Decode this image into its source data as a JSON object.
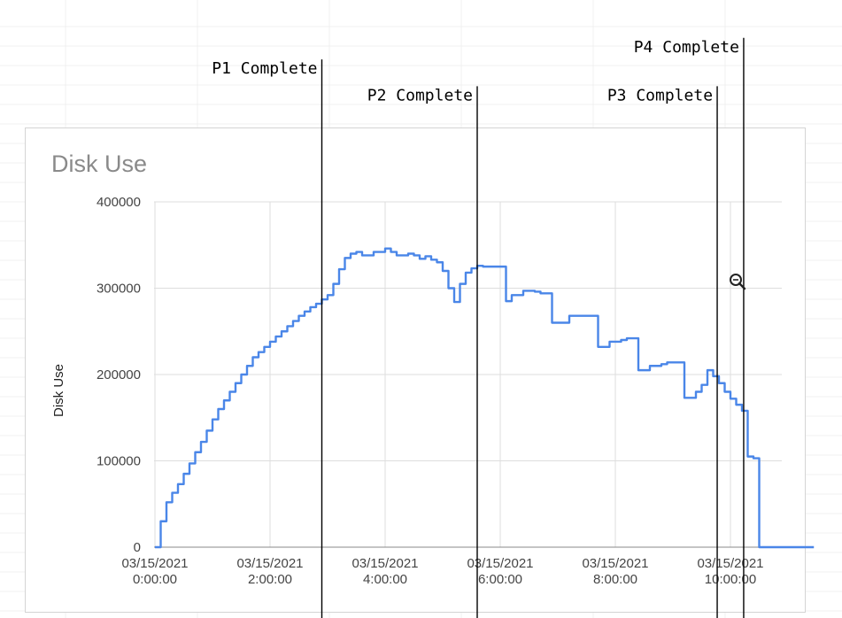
{
  "chart_data": {
    "type": "line",
    "title": "Disk Use",
    "xlabel": "",
    "ylabel": "Disk Use",
    "ylim": [
      0,
      400000
    ],
    "xlim_hours": [
      0,
      11.5
    ],
    "y_ticks": [
      {
        "value": 0,
        "label": "0"
      },
      {
        "value": 100000,
        "label": "100000"
      },
      {
        "value": 200000,
        "label": "200000"
      },
      {
        "value": 300000,
        "label": "300000"
      },
      {
        "value": 400000,
        "label": "400000"
      }
    ],
    "x_ticks": [
      {
        "hours": 0,
        "date": "03/15/2021",
        "time": "0:00:00"
      },
      {
        "hours": 2,
        "date": "03/15/2021",
        "time": "2:00:00"
      },
      {
        "hours": 4,
        "date": "03/15/2021",
        "time": "4:00:00"
      },
      {
        "hours": 6,
        "date": "03/15/2021",
        "time": "6:00:00"
      },
      {
        "hours": 8,
        "date": "03/15/2021",
        "time": "8:00:00"
      },
      {
        "hours": 10,
        "date": "03/15/2021",
        "time": "10:00:00"
      }
    ],
    "grid": true,
    "legend": "none",
    "line_color": "#4a86e8",
    "series": [
      {
        "x": [
          0,
          0.1,
          0.2,
          0.3,
          0.4,
          0.5,
          0.6,
          0.7,
          0.8,
          0.9,
          1.0,
          1.1,
          1.2,
          1.3,
          1.4,
          1.5,
          1.6,
          1.7,
          1.8,
          1.9,
          2.0,
          2.1,
          2.2,
          2.3,
          2.4,
          2.5,
          2.6,
          2.7,
          2.8,
          2.9,
          3.0,
          3.1,
          3.2,
          3.3,
          3.4,
          3.5,
          3.6,
          3.8,
          4.0,
          4.1,
          4.2,
          4.4,
          4.5,
          4.6,
          4.7,
          4.8,
          4.9,
          5.0,
          5.1,
          5.2,
          5.3,
          5.4,
          5.5,
          5.6,
          5.7,
          5.8,
          5.9,
          6.0,
          6.1,
          6.2,
          6.4,
          6.6,
          6.7,
          6.9,
          7.2,
          7.4,
          7.5,
          7.7,
          7.9,
          8.1,
          8.2,
          8.3,
          8.4,
          8.6,
          8.8,
          8.9,
          9.0,
          9.2,
          9.4,
          9.5,
          9.6,
          9.7,
          9.8,
          9.9,
          10.0,
          10.1,
          10.2,
          10.3,
          10.4,
          10.5,
          10.6,
          10.7,
          10.8,
          10.9,
          11.0,
          11.2,
          11.45
        ],
        "y": [
          0,
          30000,
          52000,
          63000,
          73000,
          85000,
          97000,
          110000,
          122000,
          135000,
          148000,
          160000,
          170000,
          180000,
          190000,
          200000,
          210000,
          220000,
          226000,
          232000,
          238000,
          244000,
          250000,
          256000,
          262000,
          268000,
          273000,
          278000,
          282000,
          287000,
          292000,
          305000,
          322000,
          335000,
          340000,
          342000,
          338000,
          342000,
          346000,
          342000,
          338000,
          340000,
          338000,
          334000,
          337000,
          333000,
          330000,
          320000,
          300000,
          284000,
          305000,
          318000,
          323000,
          326000,
          325000,
          325000,
          325000,
          325000,
          285000,
          292000,
          297000,
          296000,
          294000,
          260000,
          268000,
          268000,
          268000,
          232000,
          238000,
          240000,
          242000,
          242000,
          205000,
          210000,
          212000,
          214000,
          214000,
          173000,
          180000,
          188000,
          205000,
          198000,
          190000,
          180000,
          172000,
          165000,
          158000,
          105000,
          103000,
          0,
          0,
          0,
          0,
          0,
          0,
          0,
          0
        ]
      }
    ],
    "annotations": [
      {
        "label": "P1 Complete",
        "hours": 2.9,
        "label_side": "left",
        "line_top_y_value": 565000
      },
      {
        "label": "P2 Complete",
        "hours": 5.6,
        "label_side": "left",
        "line_top_y_value": 534000
      },
      {
        "label": "P3 Complete",
        "hours": 9.77,
        "label_side": "left",
        "line_top_y_value": 534000
      },
      {
        "label": "P4 Complete",
        "hours": 10.23,
        "label_side": "left",
        "line_top_y_value": 590000
      }
    ]
  }
}
